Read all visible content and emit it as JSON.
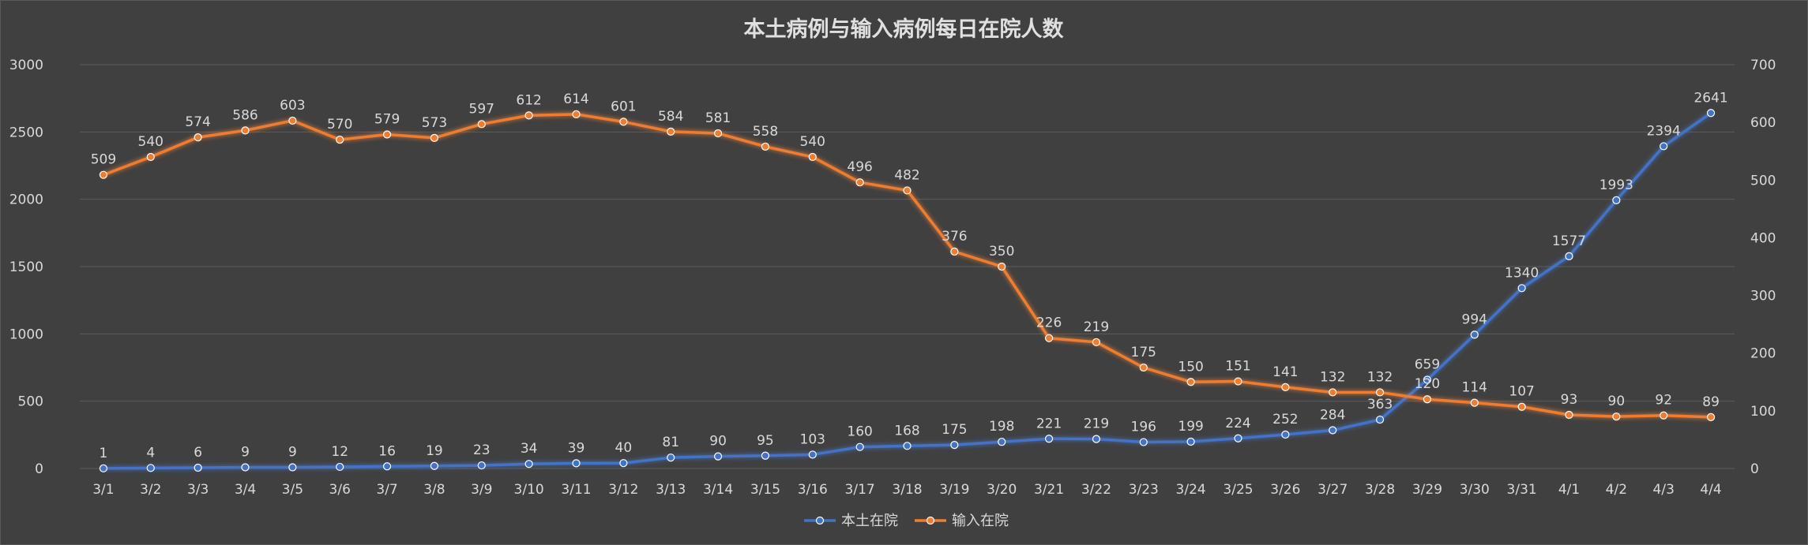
{
  "chart_data": {
    "type": "line",
    "title": "本土病例与输入病例每日在院人数",
    "categories": [
      "3/1",
      "3/2",
      "3/3",
      "3/4",
      "3/5",
      "3/6",
      "3/7",
      "3/8",
      "3/9",
      "3/10",
      "3/11",
      "3/12",
      "3/13",
      "3/14",
      "3/15",
      "3/16",
      "3/17",
      "3/18",
      "3/19",
      "3/20",
      "3/21",
      "3/22",
      "3/23",
      "3/24",
      "3/25",
      "3/26",
      "3/27",
      "3/28",
      "3/29",
      "3/30",
      "3/31",
      "4/1",
      "4/2",
      "4/3",
      "4/4"
    ],
    "left_axis": {
      "ylim": [
        0,
        3000
      ],
      "ticks": [
        "0",
        "500",
        "1000",
        "1500",
        "2000",
        "2500",
        "3000"
      ]
    },
    "right_axis": {
      "ylim": [
        0,
        700
      ],
      "ticks": [
        "0",
        "100",
        "200",
        "300",
        "400",
        "500",
        "600",
        "700"
      ]
    },
    "grid": true,
    "legend_position": "bottom",
    "series": [
      {
        "name": "本土在院",
        "axis": "left",
        "color": "#4472C4",
        "values": [
          1,
          4,
          6,
          9,
          9,
          12,
          16,
          19,
          23,
          34,
          39,
          40,
          81,
          90,
          95,
          103,
          160,
          168,
          175,
          198,
          221,
          219,
          196,
          199,
          224,
          252,
          284,
          363,
          659,
          994,
          1340,
          1577,
          1993,
          2394,
          2641
        ]
      },
      {
        "name": "输入在院",
        "axis": "right",
        "color": "#ED7D31",
        "values": [
          509,
          540,
          574,
          586,
          603,
          570,
          579,
          573,
          597,
          612,
          614,
          601,
          584,
          581,
          558,
          540,
          496,
          482,
          376,
          350,
          226,
          219,
          175,
          150,
          151,
          141,
          132,
          132,
          120,
          114,
          107,
          93,
          90,
          92,
          89
        ]
      }
    ]
  }
}
